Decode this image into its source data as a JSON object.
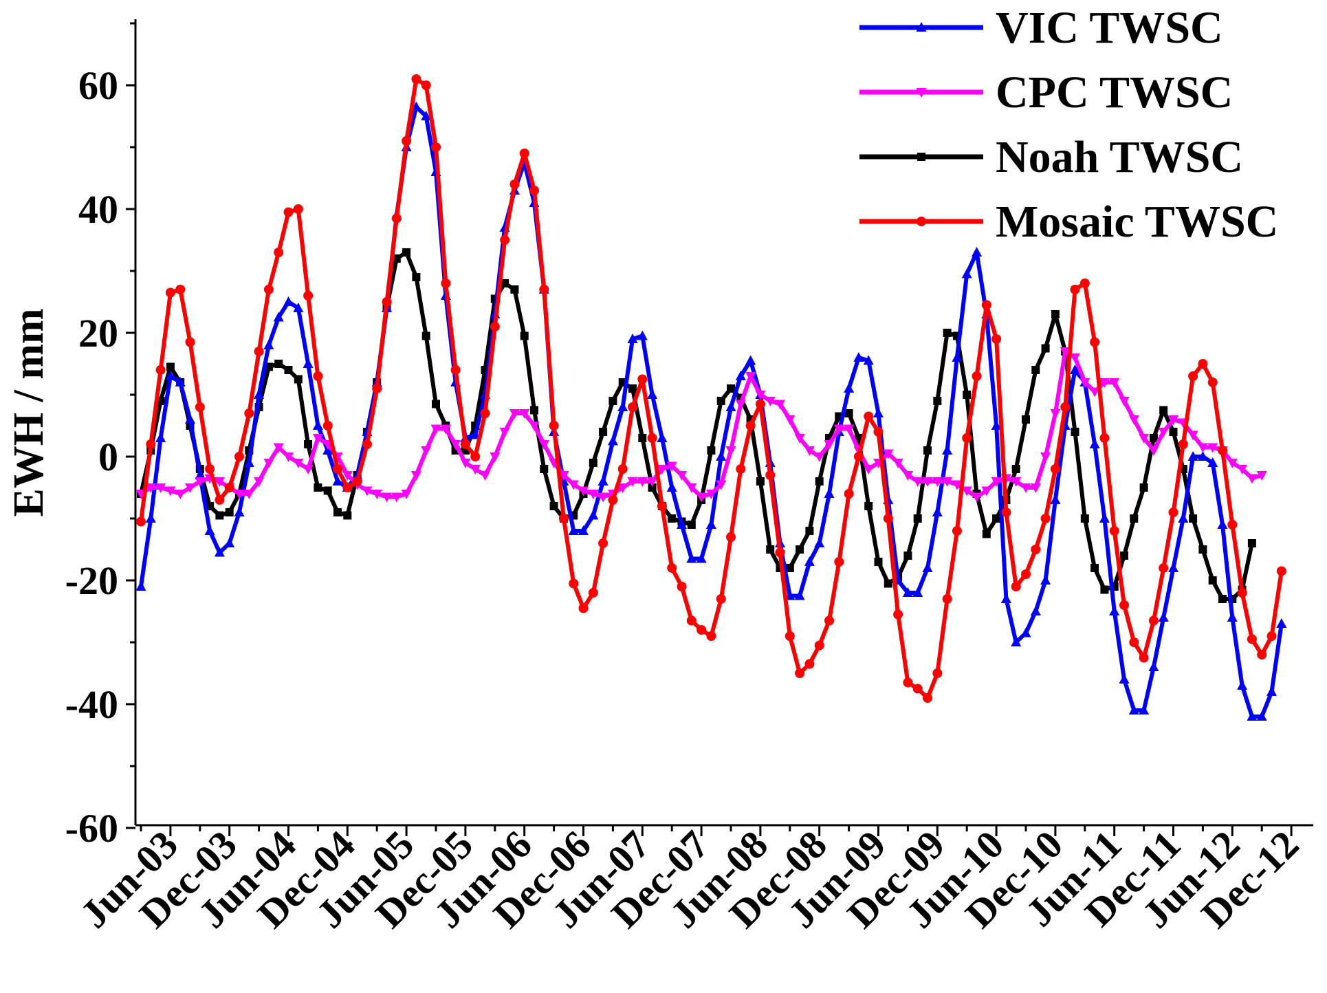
{
  "chart_data": {
    "type": "line",
    "title": "",
    "xlabel": "",
    "ylabel": "EWH / mm",
    "ylim": [
      -60,
      70
    ],
    "yticks": [
      -60,
      -40,
      -20,
      0,
      20,
      40,
      60
    ],
    "yticklabels": [
      "-60",
      "-40",
      "-20",
      "0",
      "20",
      "40",
      "60"
    ],
    "x_start": "Mar-03",
    "x_step": "1 month",
    "xticklabels": [
      "Jun-03",
      "Dec-03",
      "Jun-04",
      "Dec-04",
      "Jun-05",
      "Dec-05",
      "Jun-06",
      "Dec-06",
      "Jun-07",
      "Dec-07",
      "Jun-08",
      "Dec-08",
      "Jun-09",
      "Dec-09",
      "Jun-10",
      "Dec-10",
      "Jun-11",
      "Dec-11",
      "Jun-12",
      "Dec-12"
    ],
    "legend_position": "top-right",
    "series": [
      {
        "name": "VIC TWSC",
        "color": "#0000ff",
        "marker": "triangle-up",
        "values": [
          -21,
          -10,
          3,
          13,
          12,
          6,
          -3,
          -12,
          -15.5,
          -14,
          -9,
          -1,
          10,
          18,
          22.5,
          25,
          24,
          15,
          5,
          1,
          -4,
          -5,
          -3,
          4,
          12,
          24,
          39,
          50,
          56.5,
          55,
          46,
          26,
          12,
          3,
          3.5,
          10,
          23,
          37,
          43,
          47.5,
          41,
          27,
          4,
          -4,
          -12,
          -12,
          -9.5,
          -4,
          2.5,
          8,
          19,
          19.5,
          10,
          3,
          -5,
          -11,
          -16.5,
          -16.5,
          -11,
          0,
          8,
          13,
          15.5,
          10,
          -1,
          -14,
          -22.5,
          -22.5,
          -17,
          -14,
          -6,
          4,
          11,
          16,
          15.5,
          7,
          -7,
          -20,
          -22,
          -22,
          -18,
          -9,
          1,
          16,
          29.5,
          33,
          23,
          5,
          -23,
          -30,
          -28.5,
          -25,
          -20,
          -7,
          5,
          14,
          12,
          2,
          -10,
          -25,
          -36,
          -41,
          -41,
          -34,
          -26,
          -18,
          -10,
          0,
          0,
          -1,
          -11,
          -26,
          -37,
          -42,
          -42,
          -38,
          -27
        ]
      },
      {
        "name": "CPC TWSC",
        "color": "#ff00ff",
        "marker": "triangle-down",
        "values": [
          -6,
          -5,
          -5,
          -5.5,
          -6,
          -5,
          -4,
          -3.5,
          -4,
          -5,
          -6,
          -6,
          -4,
          -1,
          1.5,
          0,
          -1,
          -2,
          3,
          2,
          0,
          -3,
          -4.5,
          -5.5,
          -6,
          -6.5,
          -6.5,
          -6,
          -3,
          1,
          4.5,
          4.5,
          2,
          -1,
          -2,
          -3,
          0,
          4,
          7,
          7,
          5,
          2,
          -1,
          -3,
          -4.5,
          -5.5,
          -6,
          -6.5,
          -6,
          -5,
          -4,
          -4,
          -4,
          -2,
          -1.5,
          -3,
          -5,
          -6.5,
          -6,
          -4.5,
          1,
          8.5,
          13,
          10,
          9,
          8.5,
          6,
          3,
          1,
          0,
          2,
          4.5,
          4.5,
          1,
          -2,
          -1,
          0.5,
          -1,
          -3,
          -4,
          -4,
          -4,
          -4,
          -4.5,
          -5.5,
          -6.5,
          -5.5,
          -4,
          -3.5,
          -4,
          -5,
          -5,
          0,
          7,
          17,
          16,
          12,
          10.5,
          12,
          12,
          9,
          6,
          3,
          1,
          4,
          6,
          5.5,
          3.5,
          1.5,
          1.5,
          1,
          -1,
          -2,
          -3.5,
          -3
        ]
      },
      {
        "name": "Noah TWSC",
        "color": "#000000",
        "marker": "square",
        "values": [
          -6,
          1,
          9,
          14.5,
          12,
          5,
          -2,
          -8,
          -9.5,
          -9,
          -6,
          1,
          8,
          14.5,
          15,
          14,
          12.5,
          2,
          -5,
          -5.5,
          -9,
          -9.5,
          -3,
          4,
          12,
          24,
          32,
          33,
          29,
          19.5,
          8.5,
          5,
          1,
          1,
          5,
          14,
          25.5,
          28,
          27,
          19.5,
          7.5,
          -2,
          -8,
          -10,
          -9.5,
          -6,
          -1,
          4,
          9,
          12,
          11,
          3,
          -5,
          -8,
          -10,
          -10.5,
          -11,
          -7,
          1,
          9,
          11,
          9.5,
          6,
          -4,
          -15,
          -18,
          -18,
          -15,
          -12,
          -4,
          3,
          6.5,
          7,
          3,
          -8,
          -17,
          -20.5,
          -19.5,
          -16,
          -10,
          1,
          9,
          20,
          19.5,
          10,
          -6,
          -12.5,
          -10,
          -7,
          -2,
          6,
          14,
          17.5,
          23,
          17,
          4,
          -10,
          -18,
          -21.5,
          -21,
          -16,
          -10,
          -5,
          3,
          7.5,
          4,
          -2,
          -10,
          -15,
          -20,
          -23,
          -23,
          -21.5,
          -14
        ]
      },
      {
        "name": "Mosaic TWSC",
        "color": "#ff0000",
        "marker": "circle",
        "values": [
          -10.5,
          2,
          14,
          26.5,
          27,
          18.5,
          8,
          -2,
          -7,
          -5,
          0,
          7,
          17,
          27,
          33,
          39.5,
          40,
          26,
          13,
          5,
          -2,
          -5,
          -4,
          2,
          11,
          25,
          38.5,
          51,
          61,
          60,
          50,
          28,
          14,
          2,
          0,
          7,
          21,
          35,
          44,
          49,
          43,
          27,
          5,
          -10,
          -20.5,
          -24.5,
          -22,
          -14,
          -7,
          -2,
          8,
          12.5,
          3,
          -8,
          -18,
          -21,
          -26.5,
          -28,
          -29,
          -23,
          -13,
          -2,
          5,
          8.5,
          -3,
          -15.5,
          -29,
          -35,
          -33.5,
          -30.5,
          -26.5,
          -17,
          -6,
          0,
          6.5,
          4,
          -10,
          -25.5,
          -36.5,
          -37.5,
          -39,
          -35,
          -23,
          -12,
          3,
          13,
          24.5,
          19,
          -9,
          -21,
          -19,
          -15,
          -10,
          -2,
          8,
          27,
          28,
          18.5,
          3,
          -12,
          -24,
          -30,
          -32.5,
          -26.5,
          -18,
          -9,
          2,
          13,
          15,
          12,
          1,
          -11,
          -22,
          -29.5,
          -32,
          -29,
          -18.5
        ]
      }
    ]
  }
}
